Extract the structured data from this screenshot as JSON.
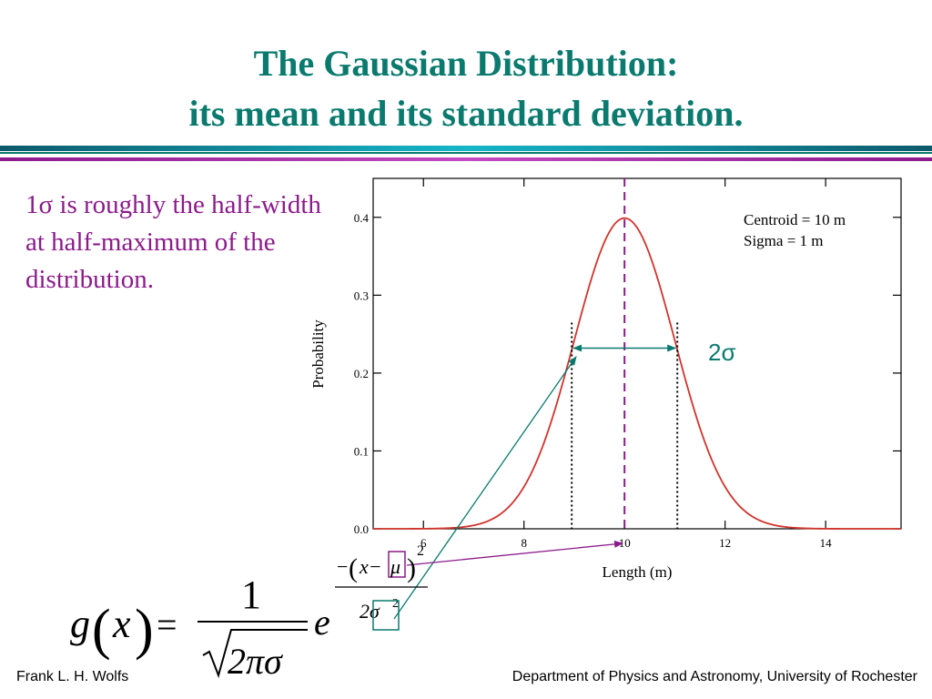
{
  "title_line1": "The Gaussian Distribution:",
  "title_line2": "its mean and its standard deviation.",
  "note": "1σ is roughly the half-width at half-maximum of the distribution.",
  "footer_left": "Frank L. H. Wolfs",
  "footer_right": "Department of Physics and Astronomy, University of Rochester",
  "sigma_label": "2σ",
  "formula": {
    "g": "g",
    "x": "x",
    "lparen": "(",
    "rparen": ")",
    "equals": "=",
    "one": "1",
    "denominator": "2πσ",
    "e": "e",
    "exp_num_minus": "−",
    "exp_num_x": "x−",
    "exp_num_mu": "μ",
    "exp_power": "2",
    "exp_den": "2σ",
    "exp_den_power": "2"
  },
  "colors": {
    "title": "#0a7a6f",
    "note": "#8b1a8b",
    "curve": "#d0342c",
    "mean_line": "#8b1a8b",
    "teal_arrow": "#0a7a6f",
    "purple_arrow": "#8b1a8b"
  },
  "chart_data": {
    "type": "line",
    "xlabel": "Length (m)",
    "ylabel": "Probability",
    "xlim": [
      5,
      15.5
    ],
    "ylim": [
      0,
      0.45
    ],
    "xticks": [
      6,
      8,
      10,
      12,
      14
    ],
    "yticks": [
      0.0,
      0.1,
      0.2,
      0.3,
      0.4
    ],
    "ytick_labels": [
      "0.0",
      "0.1",
      "0.2",
      "0.3",
      "0.4"
    ],
    "legend": [
      "Centroid = 10 m",
      "Sigma = 1 m"
    ],
    "legend_position": "top-right",
    "centroid": 10,
    "sigma": 1,
    "mean_marker_x": 10,
    "sigma_markers_x": [
      8.95,
      11.05
    ],
    "width_arrow_y": 0.232,
    "series": [
      {
        "name": "",
        "x": [
          5,
          5.5,
          6,
          6.5,
          7,
          7.5,
          8,
          8.5,
          9,
          9.5,
          10,
          10.5,
          11,
          11.5,
          12,
          12.5,
          13,
          13.5,
          14,
          14.5,
          15,
          15.5
        ],
        "values": [
          1.5e-06,
          1.6e-05,
          0.000134,
          0.00087,
          0.0044,
          0.0175,
          0.054,
          0.1295,
          0.242,
          0.352,
          0.399,
          0.352,
          0.242,
          0.1295,
          0.054,
          0.0175,
          0.0044,
          0.00087,
          0.000134,
          1.6e-05,
          1.5e-06,
          1e-07
        ]
      }
    ]
  }
}
